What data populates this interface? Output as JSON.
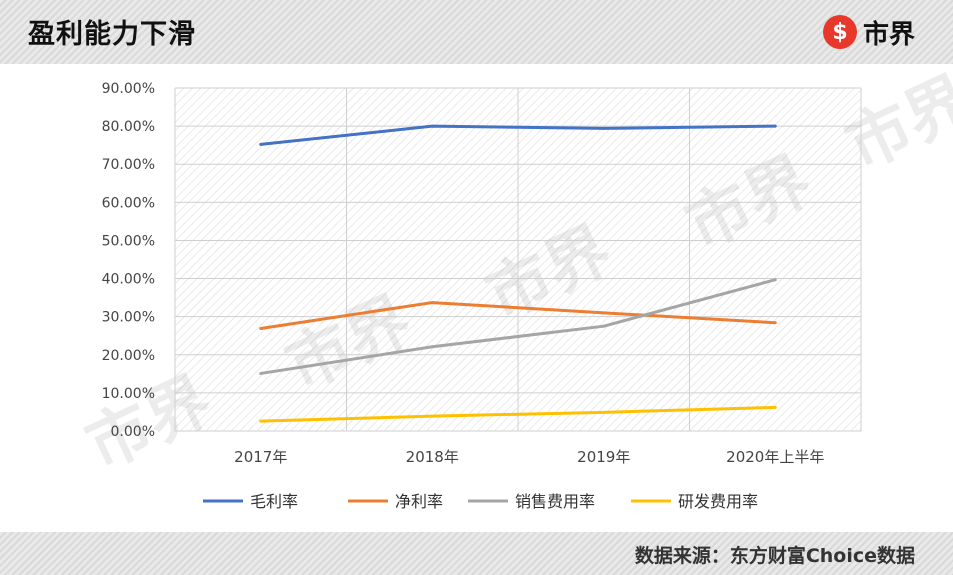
{
  "header": {
    "title": "盈利能力下滑",
    "logo_text": "市界"
  },
  "footer": {
    "source": "数据来源：东方财富Choice数据"
  },
  "chart_data": {
    "type": "line",
    "categories": [
      "2017年",
      "2018年",
      "2019年",
      "2020年上半年"
    ],
    "y_ticks": [
      "0.00%",
      "10.00%",
      "20.00%",
      "30.00%",
      "40.00%",
      "50.00%",
      "60.00%",
      "70.00%",
      "80.00%",
      "90.00%"
    ],
    "ylim": [
      0,
      90
    ],
    "grid": true,
    "legend_position": "bottom",
    "series": [
      {
        "name": "毛利率",
        "values": [
          75.2,
          80.0,
          79.4,
          80.0
        ],
        "color": "#4472c4"
      },
      {
        "name": "净利率",
        "values": [
          26.9,
          33.7,
          31.0,
          28.4
        ],
        "color": "#ed7d31"
      },
      {
        "name": "销售费用率",
        "values": [
          15.1,
          22.1,
          27.5,
          39.7
        ],
        "color": "#a5a5a5"
      },
      {
        "name": "研发费用率",
        "values": [
          2.6,
          3.9,
          4.9,
          6.2
        ],
        "color": "#ffc000"
      }
    ]
  }
}
